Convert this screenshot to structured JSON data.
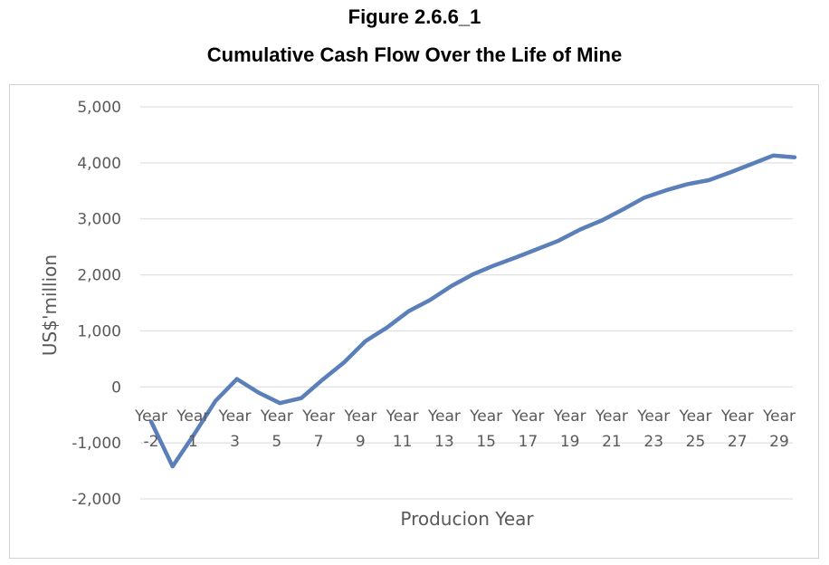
{
  "figure": {
    "label": "Figure 2.6.6_1",
    "title": "Cumulative Cash Flow Over the Life of Mine"
  },
  "chart_data": {
    "type": "line",
    "title": "Cumulative Cash Flow Over the Life of Mine",
    "xlabel": "Producion Year",
    "ylabel": "US$'million",
    "ylim": [
      -2000,
      5000
    ],
    "yticks": [
      -2000,
      -1000,
      0,
      1000,
      2000,
      3000,
      4000,
      5000
    ],
    "ytick_labels": [
      "-2,000",
      "-1,000",
      "0",
      "1,000",
      "2,000",
      "3,000",
      "4,000",
      "5,000"
    ],
    "x": [
      -2,
      -1,
      1,
      2,
      3,
      4,
      5,
      6,
      7,
      8,
      9,
      10,
      11,
      12,
      13,
      14,
      15,
      16,
      17,
      18,
      19,
      20,
      21,
      22,
      23,
      24,
      25,
      26,
      27,
      28,
      29
    ],
    "xtick_labels": [
      {
        "top": "Year",
        "bottom": "-2"
      },
      {
        "top": "Year",
        "bottom": "1"
      },
      {
        "top": "Year",
        "bottom": "3"
      },
      {
        "top": "Year",
        "bottom": "5"
      },
      {
        "top": "Year",
        "bottom": "7"
      },
      {
        "top": "Year",
        "bottom": "9"
      },
      {
        "top": "Year",
        "bottom": "11"
      },
      {
        "top": "Year",
        "bottom": "13"
      },
      {
        "top": "Year",
        "bottom": "15"
      },
      {
        "top": "Year",
        "bottom": "17"
      },
      {
        "top": "Year",
        "bottom": "19"
      },
      {
        "top": "Year",
        "bottom": "21"
      },
      {
        "top": "Year",
        "bottom": "23"
      },
      {
        "top": "Year",
        "bottom": "25"
      },
      {
        "top": "Year",
        "bottom": "27"
      },
      {
        "top": "Year",
        "bottom": "29"
      }
    ],
    "series": [
      {
        "values": [
          -620,
          -1420,
          -850,
          -250,
          140,
          -100,
          -290,
          -200,
          130,
          440,
          820,
          1060,
          1350,
          1550,
          1800,
          2010,
          2170,
          2310,
          2460,
          2610,
          2810,
          2970,
          3170,
          3380,
          3510,
          3620,
          3690,
          3830,
          3980,
          4130,
          4100
        ],
        "color": "#5b7fb9"
      }
    ],
    "grid": true,
    "legend": "none"
  }
}
